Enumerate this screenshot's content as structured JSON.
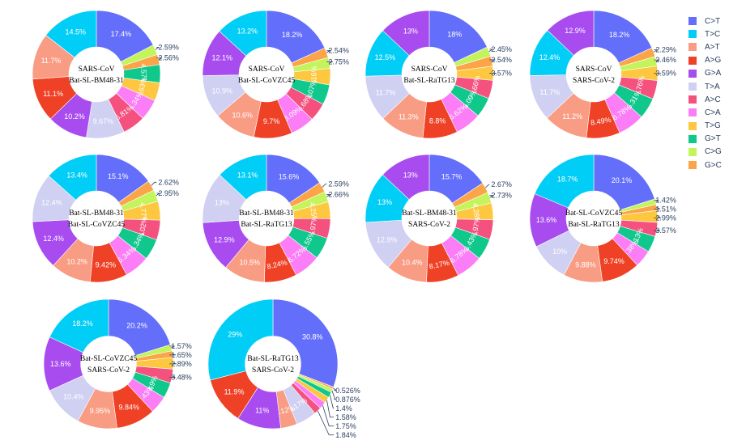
{
  "legend": {
    "categories": [
      "C>T",
      "T>C",
      "A>T",
      "A>G",
      "G>A",
      "T>A",
      "A>C",
      "C>A",
      "T>G",
      "G>T",
      "C>G",
      "G>C"
    ],
    "colors": [
      "#636efa",
      "#00cef6",
      "#f99c84",
      "#ef4125",
      "#a84cef",
      "#cfd0f2",
      "#f5517f",
      "#fb7ef7",
      "#fdc73f",
      "#10c88c",
      "#c4f45c",
      "#fca548"
    ]
  },
  "chart_data": [
    {
      "type": "pie",
      "hole": true,
      "title_lines": [
        "SARS-CoV",
        "Bat-SL-BM48-31"
      ],
      "values": [
        17.4,
        14.5,
        11.7,
        11.1,
        10.2,
        9.67,
        5.81,
        5.34,
        4.63,
        4.57,
        2.59,
        2.56
      ],
      "labels": [
        "17.4%",
        "14.5%",
        "11.7%",
        "11.1%",
        "10.2%",
        "9.67%",
        "5.81%",
        "5.34%",
        "4.63%",
        "4.57%",
        "2.59%",
        "2.56%"
      ]
    },
    {
      "type": "pie",
      "hole": true,
      "title_lines": [
        "SARS-CoV",
        "Bat-SL-CoVZC45"
      ],
      "values": [
        18.2,
        13.2,
        10.6,
        9.7,
        12.1,
        10.9,
        4.68,
        6.09,
        4.16,
        5.07,
        2.75,
        2.54
      ],
      "labels": [
        "18.2%",
        "13.2%",
        "10.6%",
        "9.7%",
        "12.1%",
        "10.9%",
        "4.68%",
        "6.09%",
        "4.16%",
        "5.07%",
        "2.75%",
        "2.54%"
      ]
    },
    {
      "type": "pie",
      "hole": true,
      "title_lines": [
        "SARS-CoV",
        "Bat-SL-RaTG13"
      ],
      "values": [
        18,
        12.5,
        11.3,
        8.8,
        13,
        11.7,
        4.66,
        6.62,
        3.57,
        5.09,
        2.45,
        2.54
      ],
      "labels": [
        "18%",
        "12.5%",
        "11.3%",
        "8.8%",
        "13%",
        "11.7%",
        "4.66%",
        "6.62%",
        "3.57%",
        "5.09%",
        "2.45%",
        "2.54%"
      ]
    },
    {
      "type": "pie",
      "hole": true,
      "title_lines": [
        "SARS-CoV",
        "SARS-CoV-2"
      ],
      "values": [
        18.2,
        12.4,
        11.2,
        8.49,
        12.9,
        11.7,
        4.76,
        6.78,
        3.59,
        5.31,
        2.46,
        2.29
      ],
      "labels": [
        "18.2%",
        "12.4%",
        "11.2%",
        "8.49%",
        "12.9%",
        "11.7%",
        "4.76%",
        "6.78%",
        "3.59%",
        "5.31%",
        "2.46%",
        "2.29%"
      ]
    },
    {
      "type": "pie",
      "hole": true,
      "title_lines": [
        "Bat-SL-BM48-31",
        "Bat-SL-CoVZC45"
      ],
      "values": [
        15.1,
        13.4,
        10.2,
        9.42,
        12.4,
        12.4,
        5.02,
        6.34,
        4.77,
        5.34,
        2.95,
        2.62
      ],
      "labels": [
        "15.1%",
        "13.4%",
        "10.2%",
        "9.42%",
        "12.4%",
        "12.4%",
        "5.02%",
        "6.34%",
        "4.77%",
        "5.34%",
        "2.95%",
        "2.62%"
      ]
    },
    {
      "type": "pie",
      "hole": true,
      "title_lines": [
        "Bat-SL-BM48-31",
        "Bat-SL-RaTG13"
      ],
      "values": [
        15.6,
        13.1,
        10.5,
        8.24,
        12.9,
        13,
        4.97,
        6.72,
        4.25,
        5.55,
        2.66,
        2.59
      ],
      "labels": [
        "15.6%",
        "13.1%",
        "10.5%",
        "8.24%",
        "12.9%",
        "13%",
        "4.97%",
        "6.72%",
        "4.25%",
        "5.55%",
        "2.66%",
        "2.59%"
      ]
    },
    {
      "type": "pie",
      "hole": true,
      "title_lines": [
        "Bat-SL-BM48-31",
        "SARS-CoV-2"
      ],
      "values": [
        15.7,
        13,
        10.4,
        8.17,
        13,
        12.9,
        4.97,
        6.78,
        4.28,
        5.43,
        2.73,
        2.67
      ],
      "labels": [
        "15.7%",
        "13%",
        "10.4%",
        "8.17%",
        "13%",
        "12.9%",
        "4.97%",
        "6.78%",
        "4.28%",
        "5.43%",
        "2.73%",
        "2.67%"
      ]
    },
    {
      "type": "pie",
      "hole": true,
      "title_lines": [
        "Bat-SL-CoVZC45",
        "Bat-SL-RaTG13"
      ],
      "values": [
        20.1,
        18.7,
        9.88,
        9.74,
        13.6,
        10,
        3.57,
        4.38,
        2.99,
        4.13,
        1.42,
        1.51
      ],
      "labels": [
        "20.1%",
        "18.7%",
        "9.88%",
        "9.74%",
        "13.6%",
        "10%",
        "3.57%",
        "4.38%",
        "2.99%",
        "4.13%",
        "1.42%",
        "1.51%"
      ]
    },
    {
      "type": "pie",
      "hole": true,
      "title_lines": [
        "Bat-SL-CoVZC45",
        "SARS-CoV-2"
      ],
      "values": [
        20.2,
        18.2,
        9.95,
        9.84,
        13.6,
        10.4,
        3.48,
        4.43,
        2.89,
        3.9,
        1.57,
        1.65
      ],
      "labels": [
        "20.2%",
        "18.2%",
        "9.95%",
        "9.84%",
        "13.6%",
        "10.4%",
        "3.48%",
        "4.43%",
        "2.89%",
        "3.9%",
        "1.57%",
        "1.65%"
      ]
    },
    {
      "type": "pie",
      "hole": true,
      "title_lines": [
        "Bat-SL-RaTG13",
        "SARS-CoV-2"
      ],
      "values": [
        30.8,
        29,
        4.12,
        11.9,
        11,
        5.17,
        1.84,
        1.75,
        1.58,
        1.4,
        0.876,
        0.526
      ],
      "labels": [
        "30.8%",
        "29%",
        "4.12%",
        "11.9%",
        "11%",
        "5.17%",
        "1.84%",
        "1.75%",
        "1.58%",
        "1.4%",
        "0.876%",
        "0.526%"
      ]
    }
  ]
}
